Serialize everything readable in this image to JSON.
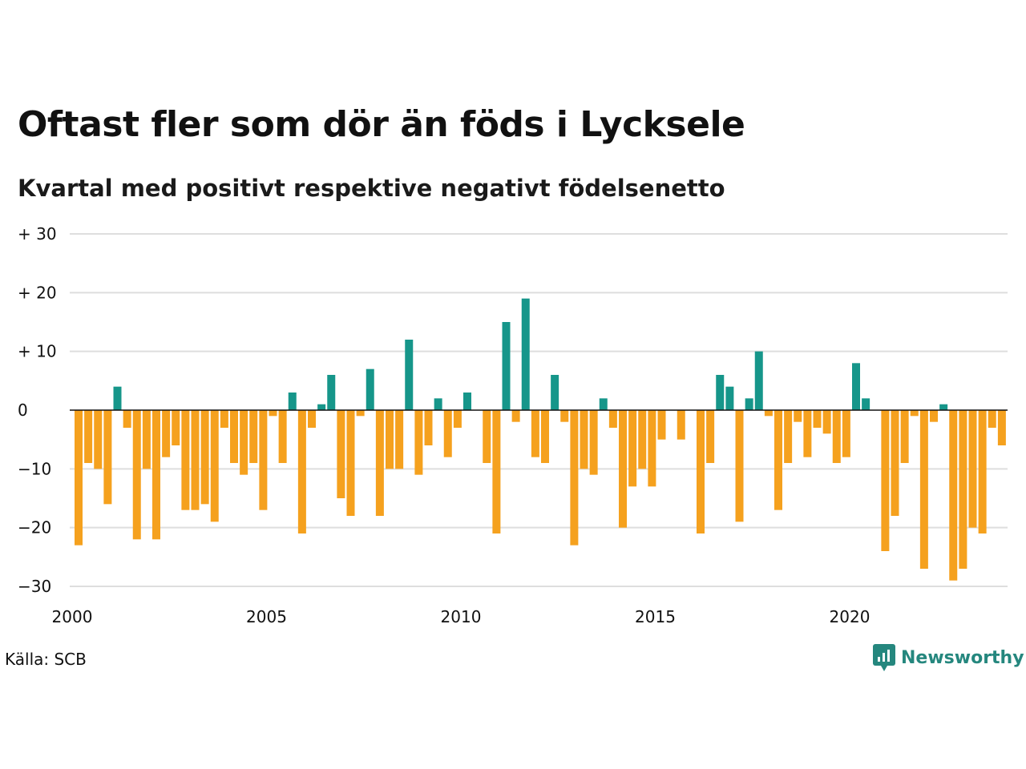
{
  "title": "Oftast fler som dör än föds i Lycksele",
  "subtitle": "Kvartal med positivt respektive negativt födelsenetto",
  "source": "Källa: SCB",
  "brand": "Newsworthy",
  "colors": {
    "positive": "#16968a",
    "negative": "#f5a11e",
    "grid": "#dedede",
    "zero": "#111111",
    "brand": "#25877e"
  },
  "chart_data": {
    "type": "bar",
    "title": "Oftast fler som dör än föds i Lycksele",
    "subtitle": "Kvartal med positivt respektive negativt födelsenetto",
    "ylim": [
      -30,
      30
    ],
    "y_ticks": [
      {
        "value": 30,
        "label": "+ 30"
      },
      {
        "value": 20,
        "label": "+ 20"
      },
      {
        "value": 10,
        "label": "+ 10"
      },
      {
        "value": 0,
        "label": "0"
      },
      {
        "value": -10,
        "label": "−10"
      },
      {
        "value": -20,
        "label": "−20"
      },
      {
        "value": -30,
        "label": "−30"
      }
    ],
    "x_ticks": [
      {
        "year": 2000,
        "label": "2000"
      },
      {
        "year": 2005,
        "label": "2005"
      },
      {
        "year": 2010,
        "label": "2010"
      },
      {
        "year": 2015,
        "label": "2015"
      },
      {
        "year": 2020,
        "label": "2020"
      }
    ],
    "start_year": 2000,
    "grid": true,
    "series": [
      {
        "values": [
          -23,
          -9,
          -10,
          -16,
          4,
          -3,
          -22,
          -10,
          -22,
          -8,
          -6,
          -17,
          -17,
          -16,
          -19,
          -3,
          -9,
          -11,
          -9,
          -17,
          -1,
          -9,
          3,
          -21,
          -3,
          1,
          6,
          -15,
          -18,
          -1,
          7,
          -18,
          -10,
          -10,
          12,
          -11,
          -6,
          2,
          -8,
          -3,
          3,
          0,
          -9,
          -21,
          15,
          -2,
          19,
          -8,
          -9,
          6,
          -2,
          -23,
          -10,
          -11,
          2,
          -3,
          -20,
          -13,
          -10,
          -13,
          -5,
          0,
          -5,
          0,
          -21,
          -9,
          6,
          4,
          -19,
          2,
          10,
          -1,
          -17,
          -9,
          -2,
          -8,
          -3,
          -4,
          -9,
          -8,
          8,
          2,
          0,
          -24,
          -18,
          -9,
          -1,
          -27,
          -2,
          1,
          -29,
          -27,
          -20,
          -21,
          -3,
          -6
        ]
      }
    ]
  }
}
